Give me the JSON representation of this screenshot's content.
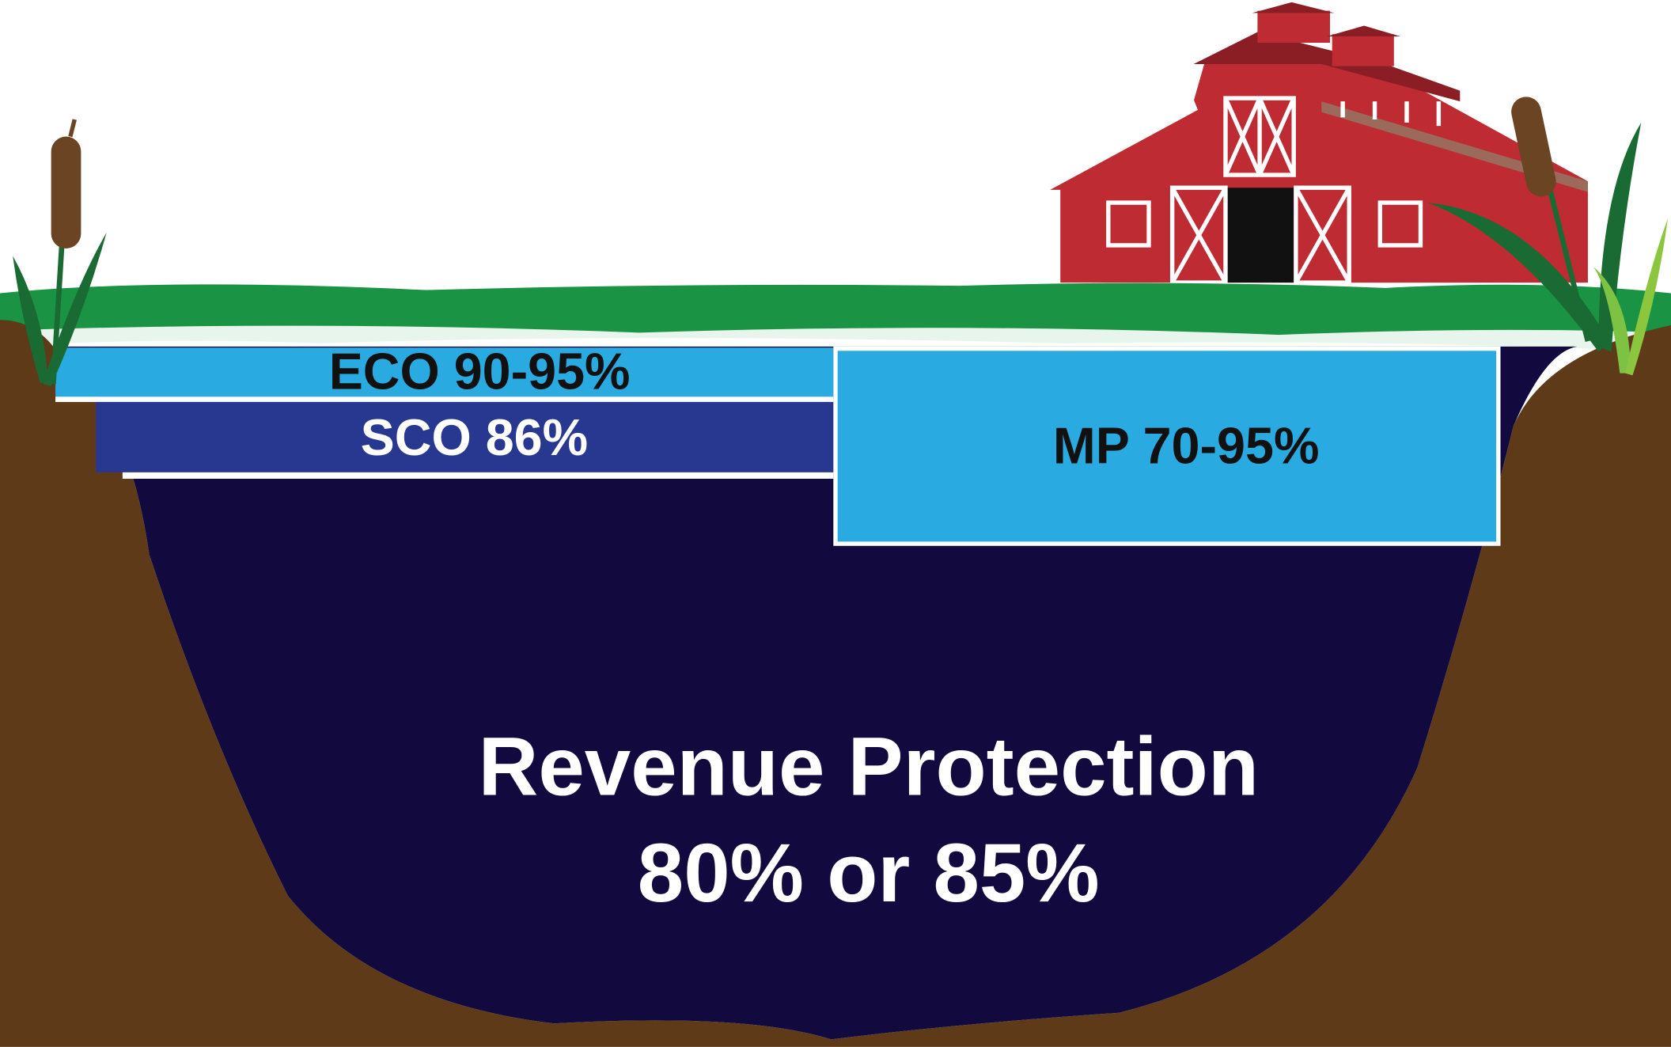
{
  "layers": [
    {
      "label": "ECO 90-95%"
    },
    {
      "label": "SCO 86%"
    },
    {
      "label": "MP 70-95%"
    }
  ],
  "base": {
    "lines": [
      "Revenue Protection",
      "80% or 85%"
    ]
  }
}
